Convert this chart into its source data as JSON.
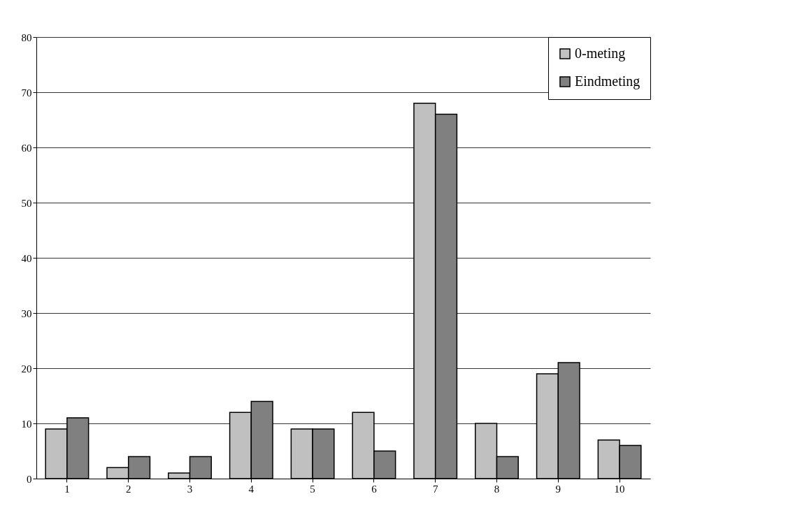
{
  "chart_data": {
    "type": "bar",
    "categories": [
      "1",
      "2",
      "3",
      "4",
      "5",
      "6",
      "7",
      "8",
      "9",
      "10"
    ],
    "series": [
      {
        "name": "0-meting",
        "color": "#c0c0c0",
        "values": [
          9,
          2,
          1,
          12,
          9,
          12,
          68,
          10,
          19,
          7
        ]
      },
      {
        "name": "Eindmeting",
        "color": "#808080",
        "values": [
          11,
          4,
          4,
          14,
          9,
          5,
          66,
          4,
          21,
          6
        ]
      }
    ],
    "ylim": [
      0,
      80
    ],
    "yticks": [
      0,
      10,
      20,
      30,
      40,
      50,
      60,
      70,
      80
    ],
    "grid": "y",
    "legend": "top right"
  }
}
